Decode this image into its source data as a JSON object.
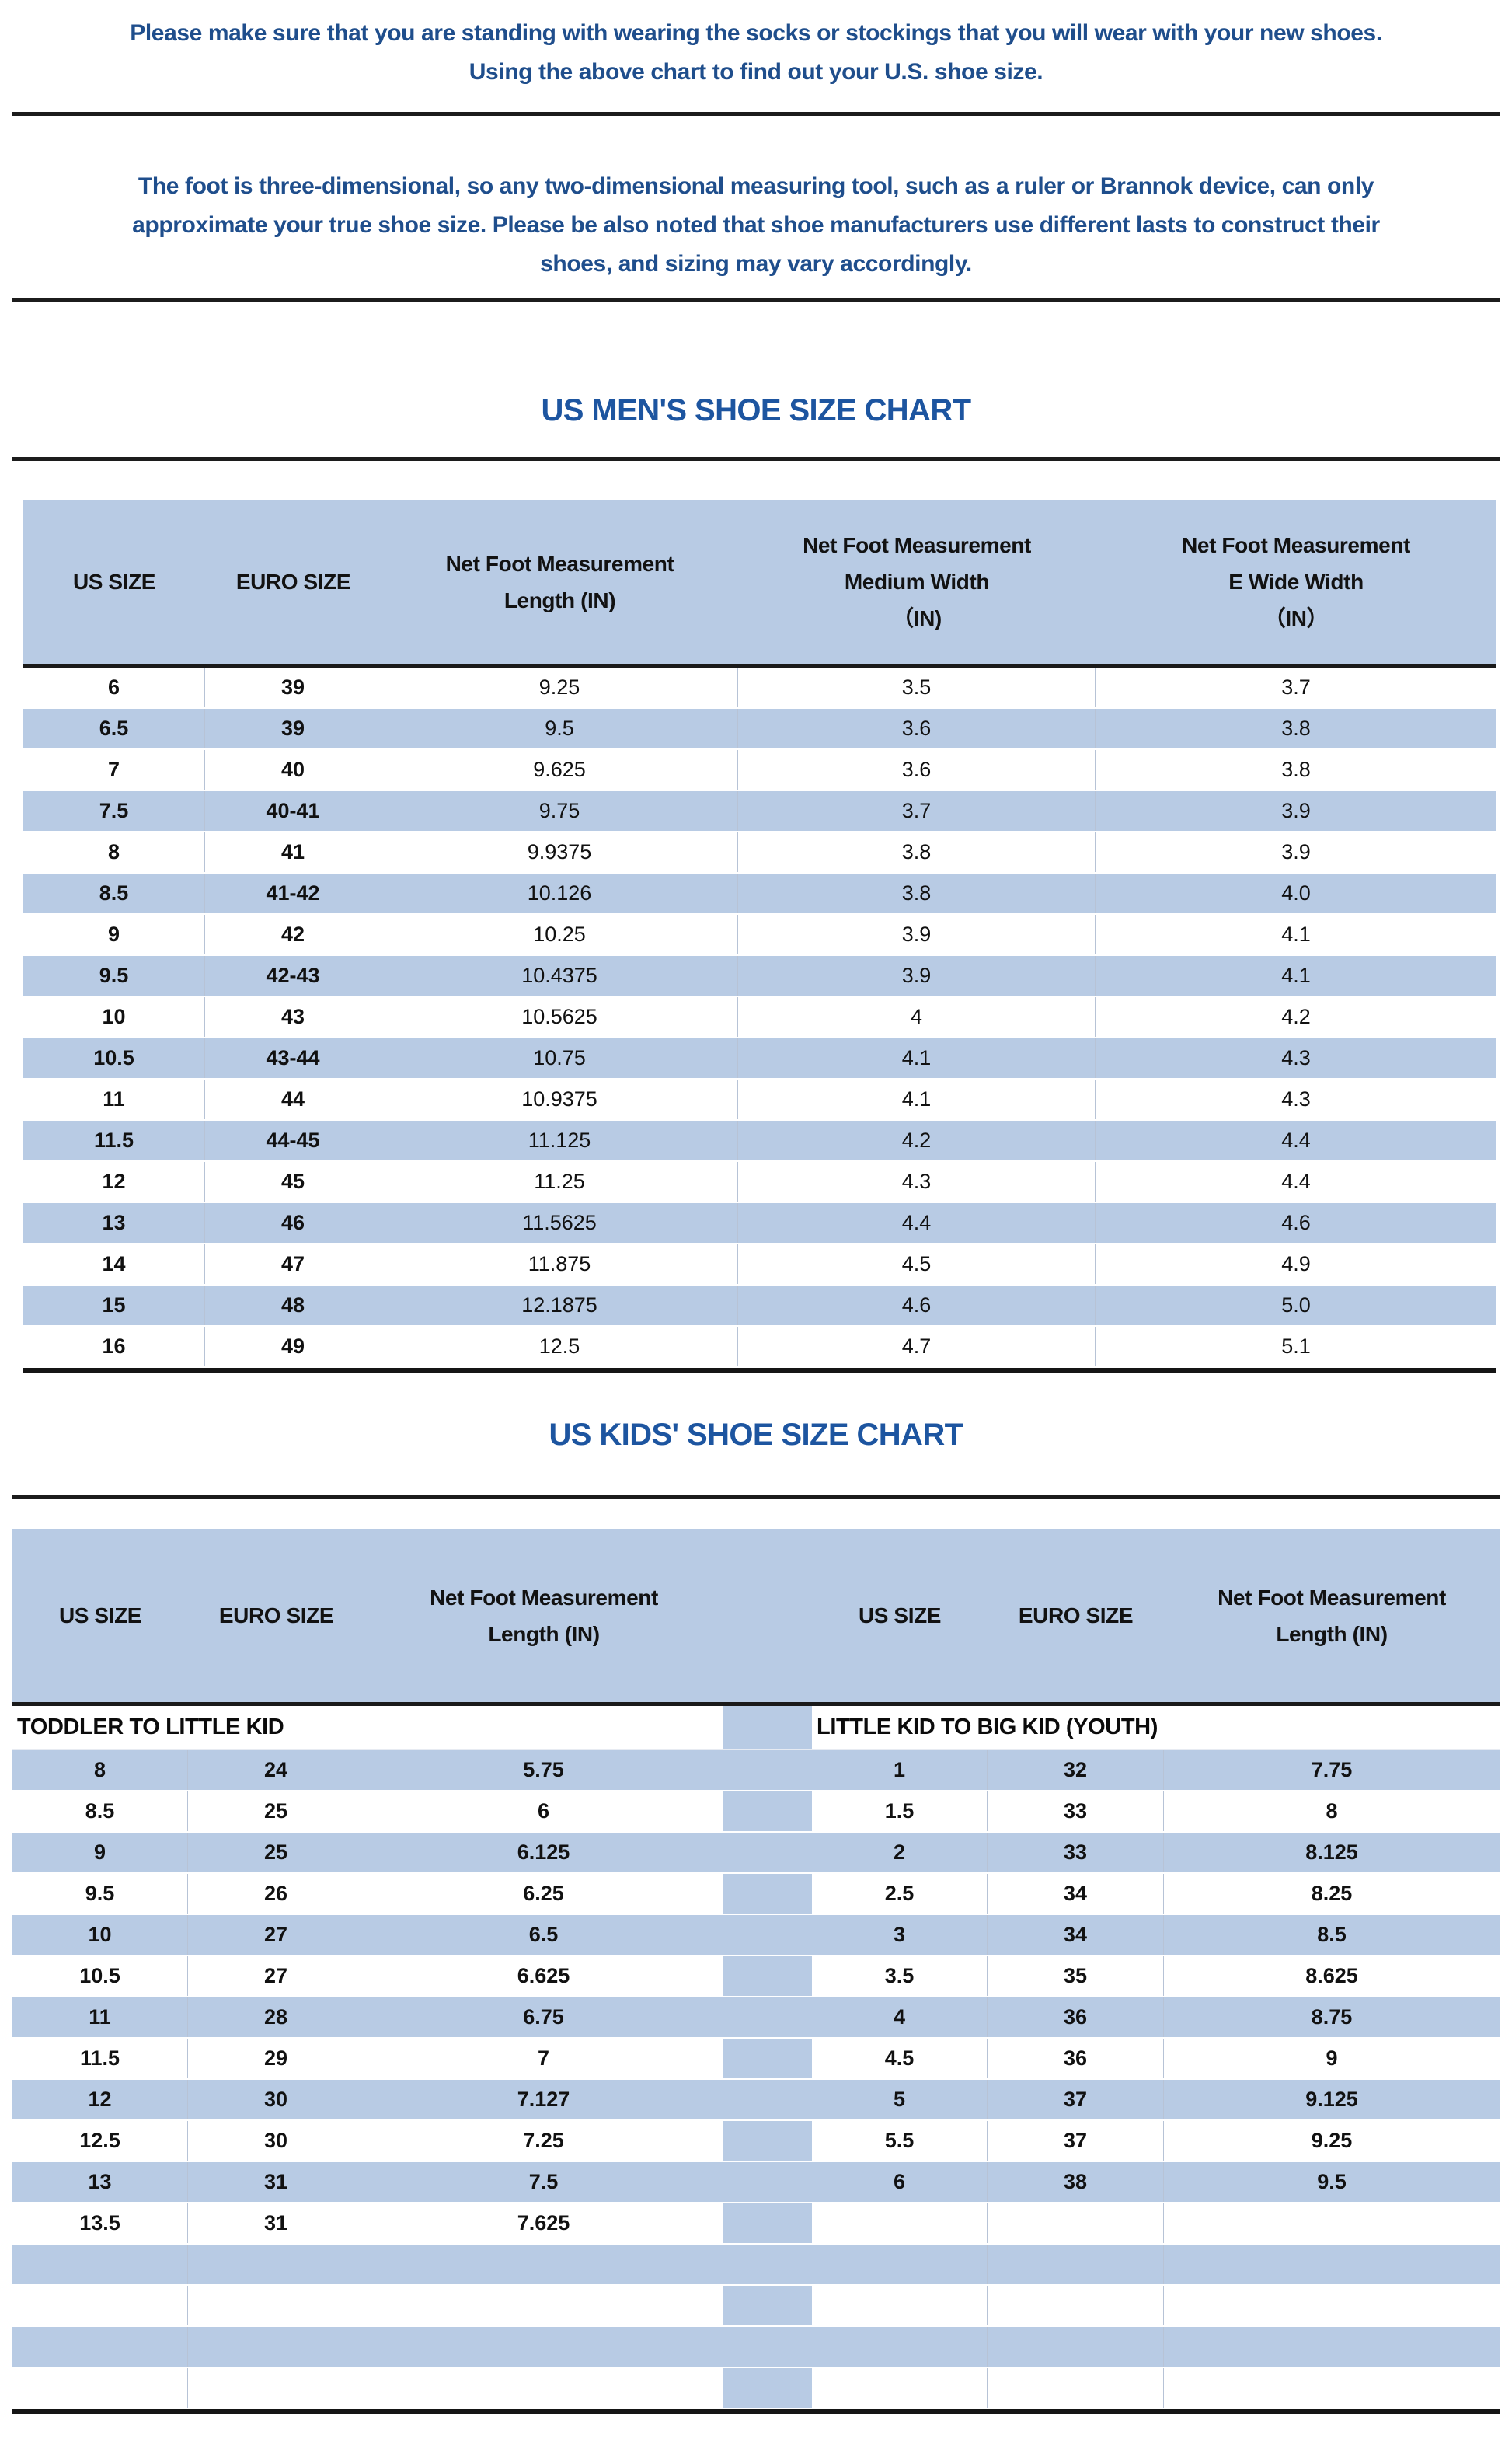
{
  "intro": {
    "p1": "Please make sure that you are standing with wearing the socks or stockings that you will wear with your new shoes.\nUsing the above chart to find out your U.S. shoe size.",
    "p2": "The foot is three-dimensional, so any two-dimensional measuring tool, such as a ruler or Brannok device, can only\napproximate your true shoe size. Please be also noted that shoe manufacturers use different lasts to construct their\nshoes, and sizing may vary accordingly."
  },
  "mens_chart": {
    "title": "US MEN'S SHOE SIZE CHART",
    "columns": [
      "US SIZE",
      "EURO SIZE",
      "Net Foot Measurement\nLength (IN)",
      "Net Foot Measurement\nMedium Width\n（IN)",
      "Net Foot Measurement\nE Wide Width\n（IN）"
    ],
    "rows": [
      [
        "6",
        "39",
        "9.25",
        "3.5",
        "3.7"
      ],
      [
        "6.5",
        "39",
        "9.5",
        "3.6",
        "3.8"
      ],
      [
        "7",
        "40",
        "9.625",
        "3.6",
        "3.8"
      ],
      [
        "7.5",
        "40-41",
        "9.75",
        "3.7",
        "3.9"
      ],
      [
        "8",
        "41",
        "9.9375",
        "3.8",
        "3.9"
      ],
      [
        "8.5",
        "41-42",
        "10.126",
        "3.8",
        "4.0"
      ],
      [
        "9",
        "42",
        "10.25",
        "3.9",
        "4.1"
      ],
      [
        "9.5",
        "42-43",
        "10.4375",
        "3.9",
        "4.1"
      ],
      [
        "10",
        "43",
        "10.5625",
        "4",
        "4.2"
      ],
      [
        "10.5",
        "43-44",
        "10.75",
        "4.1",
        "4.3"
      ],
      [
        "11",
        "44",
        "10.9375",
        "4.1",
        "4.3"
      ],
      [
        "11.5",
        "44-45",
        "11.125",
        "4.2",
        "4.4"
      ],
      [
        "12",
        "45",
        "11.25",
        "4.3",
        "4.4"
      ],
      [
        "13",
        "46",
        "11.5625",
        "4.4",
        "4.6"
      ],
      [
        "14",
        "47",
        "11.875",
        "4.5",
        "4.9"
      ],
      [
        "15",
        "48",
        "12.1875",
        "4.6",
        "5.0"
      ],
      [
        "16",
        "49",
        "12.5",
        "4.7",
        "5.1"
      ]
    ]
  },
  "kids_chart": {
    "title": "US KIDS' SHOE SIZE CHART",
    "columns": [
      "US SIZE",
      "EURO SIZE",
      "Net Foot Measurement\nLength (IN)"
    ],
    "section_left": "TODDLER TO LITTLE KID",
    "section_right": "LITTLE KID TO BIG KID (YOUTH)",
    "rows_left": [
      [
        "8",
        "24",
        "5.75"
      ],
      [
        "8.5",
        "25",
        "6"
      ],
      [
        "9",
        "25",
        "6.125"
      ],
      [
        "9.5",
        "26",
        "6.25"
      ],
      [
        "10",
        "27",
        "6.5"
      ],
      [
        "10.5",
        "27",
        "6.625"
      ],
      [
        "11",
        "28",
        "6.75"
      ],
      [
        "11.5",
        "29",
        "7"
      ],
      [
        "12",
        "30",
        "7.127"
      ],
      [
        "12.5",
        "30",
        "7.25"
      ],
      [
        "13",
        "31",
        "7.5"
      ],
      [
        "13.5",
        "31",
        "7.625"
      ]
    ],
    "rows_right": [
      [
        "1",
        "32",
        "7.75"
      ],
      [
        "1.5",
        "33",
        "8"
      ],
      [
        "2",
        "33",
        "8.125"
      ],
      [
        "2.5",
        "34",
        "8.25"
      ],
      [
        "3",
        "34",
        "8.5"
      ],
      [
        "3.5",
        "35",
        "8.625"
      ],
      [
        "4",
        "36",
        "8.75"
      ],
      [
        "4.5",
        "36",
        "9"
      ],
      [
        "5",
        "37",
        "9.125"
      ],
      [
        "5.5",
        "37",
        "9.25"
      ],
      [
        "6",
        "38",
        "9.5"
      ]
    ],
    "trailing_empty_rows": 4
  },
  "colors": {
    "accent_blue": "#b8cbe4",
    "text_blue": "#1f4e8c",
    "title_blue": "#1d55a0",
    "line_dark": "#1a1a1a"
  }
}
